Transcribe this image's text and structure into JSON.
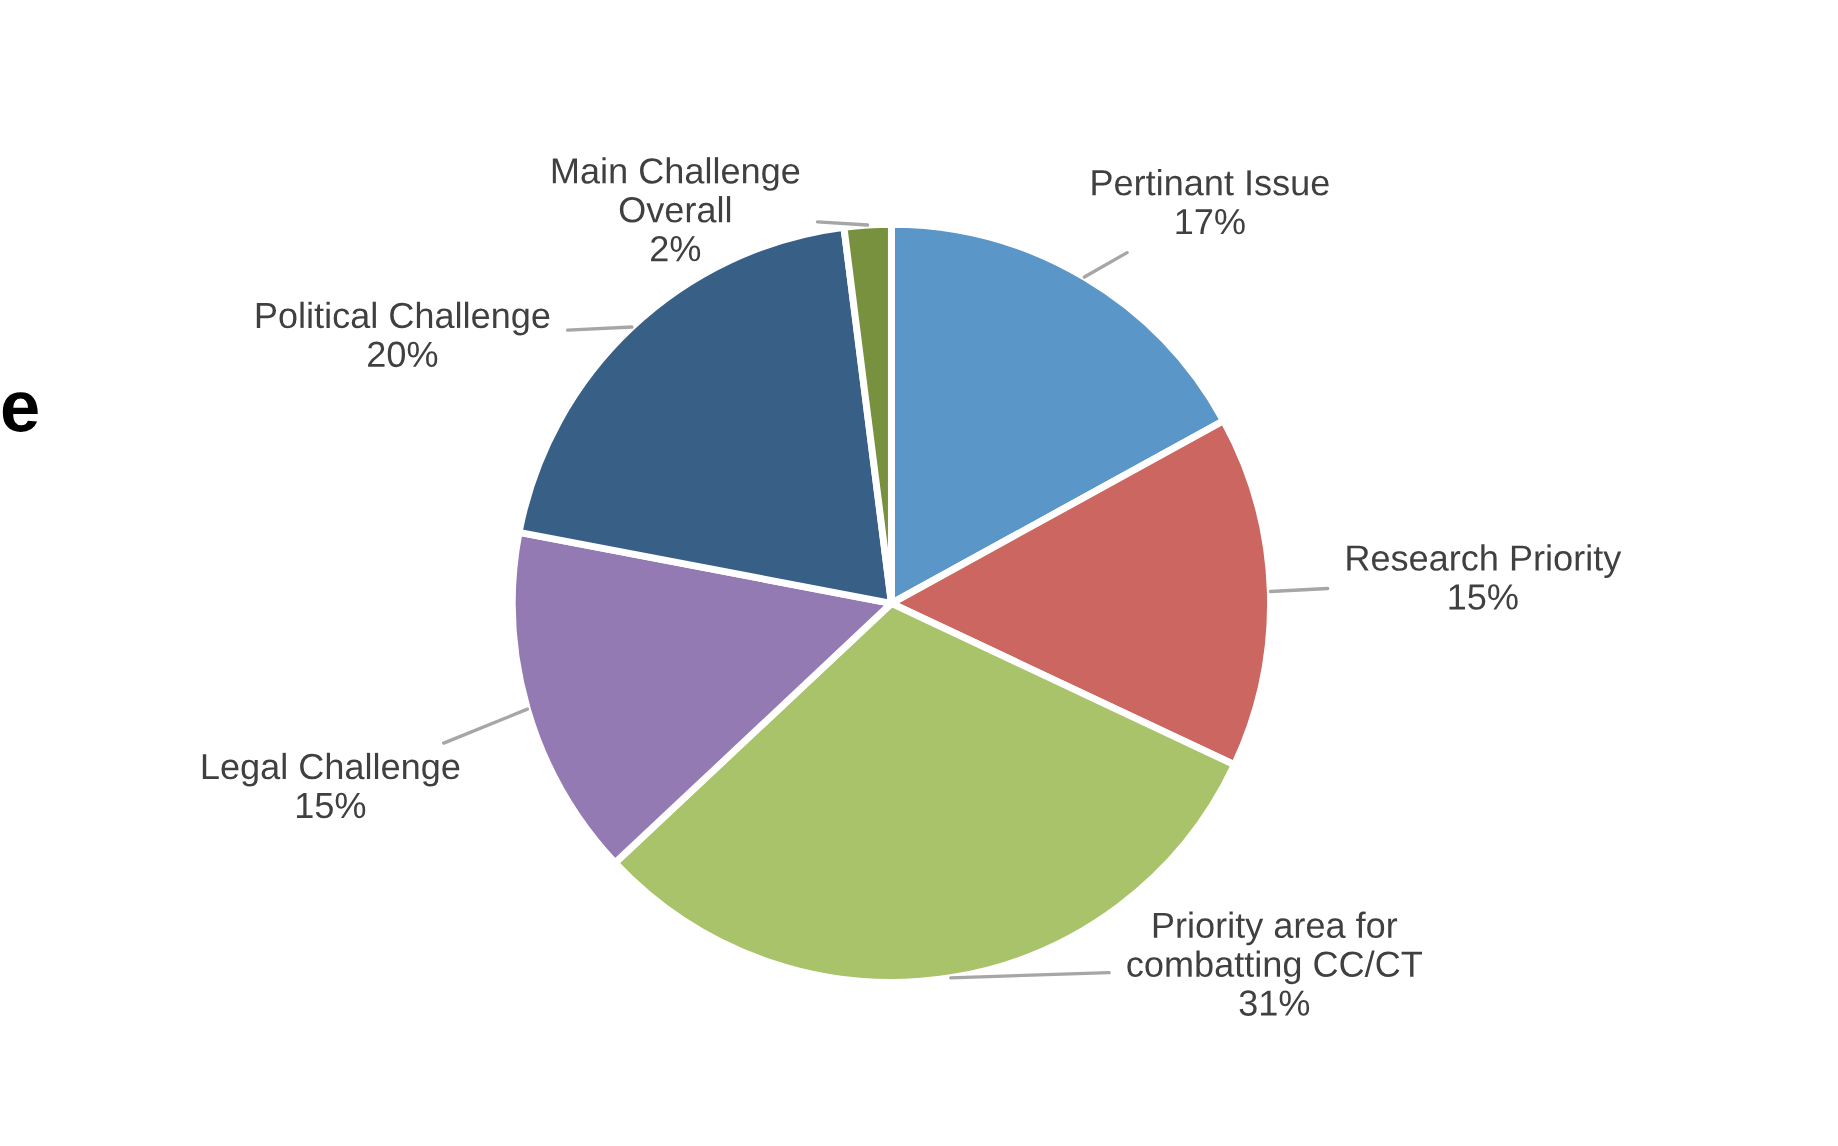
{
  "chart_data": {
    "type": "pie",
    "categories": [
      "Pertinant Issue",
      "Research Priority",
      "Priority area for\ncombatting CC/CT",
      "Legal Challenge",
      "Political Challenge",
      "Main Challenge\nOverall"
    ],
    "values": [
      17,
      15,
      31,
      15,
      20,
      2
    ],
    "value_labels": [
      "17%",
      "15%",
      "31%",
      "15%",
      "20%",
      "2%"
    ],
    "colors": [
      "#5b96c8",
      "#cc6660",
      "#a9c36a",
      "#937ab3",
      "#386087",
      "#77913e"
    ],
    "annotations": [
      "e"
    ],
    "legend": false
  }
}
